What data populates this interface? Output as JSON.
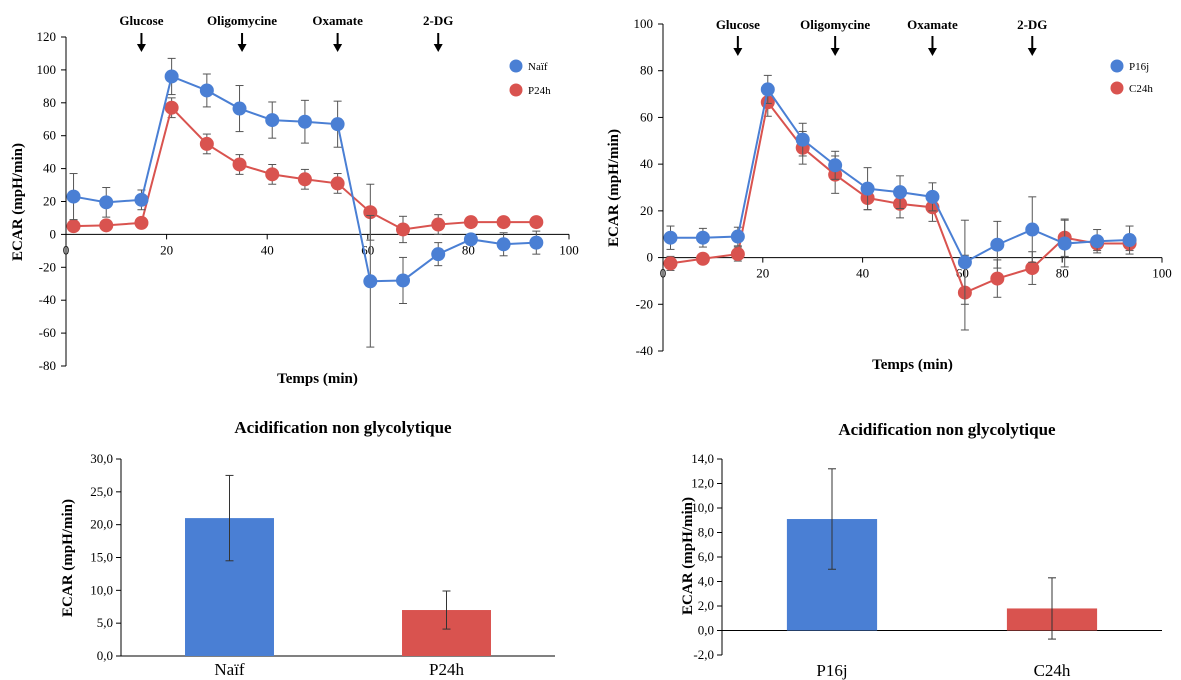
{
  "chart_data": [
    {
      "type": "line",
      "xlabel": "Temps (min)",
      "ylabel": "ECAR (mpH/min)",
      "xlim": [
        0,
        100
      ],
      "ylim": [
        -80,
        120
      ],
      "xticks": [
        "0",
        "20",
        "40",
        "60",
        "80",
        "100"
      ],
      "yticks": [
        "-80",
        "-60",
        "-40",
        "-20",
        "0",
        "20",
        "40",
        "60",
        "80",
        "100",
        "120"
      ],
      "legend_position": "top-right",
      "injections": [
        {
          "label": "Glucose",
          "x": 15
        },
        {
          "label": "Oligomycine",
          "x": 35
        },
        {
          "label": "Oxamate",
          "x": 54
        },
        {
          "label": "2-DG",
          "x": 74
        }
      ],
      "series": [
        {
          "name": "Naïf",
          "color": "#4a7fd4",
          "x": [
            1.5,
            8,
            15,
            21,
            28,
            34.5,
            41,
            47.5,
            54,
            60.5,
            67,
            74,
            80.5,
            87,
            93.5
          ],
          "y": [
            23,
            19.5,
            21,
            96,
            87.5,
            76.5,
            69.5,
            68.5,
            67,
            -28.5,
            -28,
            -12,
            -3,
            -6,
            -5
          ],
          "err": [
            14,
            9,
            6,
            11,
            10,
            14,
            11,
            13,
            14,
            40,
            14,
            7,
            3,
            7,
            7
          ]
        },
        {
          "name": "P24h",
          "color": "#d9534f",
          "x": [
            1.5,
            8,
            15,
            21,
            28,
            34.5,
            41,
            47.5,
            54,
            60.5,
            67,
            74,
            80.5,
            87,
            93.5
          ],
          "y": [
            5,
            5.5,
            7,
            77,
            55,
            42.5,
            36.5,
            33.5,
            31,
            13.5,
            3,
            6,
            7.5,
            7.5,
            7.5
          ],
          "err": [
            3,
            2,
            3,
            6,
            6,
            6,
            6,
            6,
            6,
            17,
            8,
            6,
            3,
            2,
            2
          ]
        }
      ]
    },
    {
      "type": "line",
      "xlabel": "Temps (min)",
      "ylabel": "ECAR (mpH/min)",
      "xlim": [
        0,
        100
      ],
      "ylim": [
        -40,
        100
      ],
      "xticks": [
        "0",
        "20",
        "40",
        "60",
        "80",
        "100"
      ],
      "yticks": [
        "-40",
        "-20",
        "0",
        "20",
        "40",
        "60",
        "80",
        "100"
      ],
      "legend_position": "top-right",
      "injections": [
        {
          "label": "Glucose",
          "x": 15
        },
        {
          "label": "Oligomycine",
          "x": 34.5
        },
        {
          "label": "Oxamate",
          "x": 54
        },
        {
          "label": "2-DG",
          "x": 74
        }
      ],
      "series": [
        {
          "name": "P16j",
          "color": "#4a7fd4",
          "x": [
            1.5,
            8,
            15,
            21,
            28,
            34.5,
            41,
            47.5,
            54,
            60.5,
            67,
            74,
            80.5,
            87,
            93.5
          ],
          "y": [
            8.5,
            8.5,
            9,
            72,
            50.5,
            39.5,
            29.5,
            28,
            26,
            -2,
            5.5,
            12,
            6,
            7,
            7.5
          ],
          "err": [
            5,
            4,
            4,
            6,
            7,
            6,
            9,
            7,
            6,
            18,
            10,
            14,
            10,
            5,
            6
          ]
        },
        {
          "name": "C24h",
          "color": "#d9534f",
          "x": [
            1.5,
            8,
            15,
            21,
            28,
            34.5,
            41,
            47.5,
            54,
            60.5,
            67,
            74,
            80.5,
            87,
            93.5
          ],
          "y": [
            -2.5,
            -0.5,
            1.5,
            66.5,
            47,
            35.5,
            25.5,
            23,
            21.5,
            -15,
            -9,
            -4.5,
            8.5,
            6,
            6
          ],
          "err": [
            3,
            2,
            3,
            6,
            7,
            8,
            5,
            6,
            6,
            16,
            8,
            7,
            8,
            3,
            3
          ]
        }
      ]
    },
    {
      "type": "bar",
      "title": "Acidification non glycolytique",
      "ylabel": "ECAR (mpH/min)",
      "ylim": [
        0,
        30
      ],
      "yticks": [
        "0,0",
        "5,0",
        "10,0",
        "15,0",
        "20,0",
        "25,0",
        "30,0"
      ],
      "categories": [
        "Naïf",
        "P24h"
      ],
      "values": [
        21,
        7
      ],
      "errors": [
        6.5,
        2.9
      ],
      "colors": [
        "#4a7fd4",
        "#d9534f"
      ]
    },
    {
      "type": "bar",
      "title": "Acidification non glycolytique",
      "ylabel": "ECAR (mpH/min)",
      "ylim": [
        -2,
        14
      ],
      "yticks": [
        "-2,0",
        "0,0",
        "2,0",
        "4,0",
        "6,0",
        "8,0",
        "10,0",
        "12,0",
        "14,0"
      ],
      "categories": [
        "P16j",
        "C24h"
      ],
      "values": [
        9.1,
        1.8
      ],
      "errors": [
        4.1,
        2.5
      ],
      "colors": [
        "#4a7fd4",
        "#d9534f"
      ]
    }
  ]
}
